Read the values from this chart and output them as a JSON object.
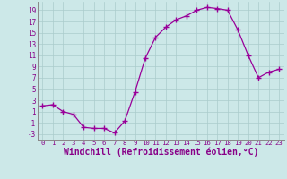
{
  "x": [
    0,
    1,
    2,
    3,
    4,
    5,
    6,
    7,
    8,
    9,
    10,
    11,
    12,
    13,
    14,
    15,
    16,
    17,
    18,
    19,
    20,
    21,
    22,
    23
  ],
  "y": [
    2,
    2.2,
    1,
    0.5,
    -1.8,
    -2,
    -2,
    -2.8,
    -0.7,
    4.5,
    10.5,
    14.2,
    16,
    17.3,
    18,
    19,
    19.5,
    19.3,
    19,
    15.5,
    11,
    7,
    8,
    8.5
  ],
  "line_color": "#990099",
  "marker": "+",
  "marker_size": 4,
  "bg_color": "#cce8e8",
  "grid_color": "#aacccc",
  "xlabel": "Windchill (Refroidissement éolien,°C)",
  "xlabel_fontsize": 7,
  "ylabel_ticks": [
    -3,
    -1,
    1,
    3,
    5,
    7,
    9,
    11,
    13,
    15,
    17,
    19
  ],
  "xlim": [
    -0.5,
    23.5
  ],
  "ylim": [
    -4,
    20.5
  ],
  "xtick_labels": [
    "0",
    "1",
    "2",
    "3",
    "4",
    "5",
    "6",
    "7",
    "8",
    "9",
    "10",
    "11",
    "12",
    "13",
    "14",
    "15",
    "16",
    "17",
    "18",
    "19",
    "20",
    "21",
    "22",
    "23"
  ],
  "tick_color": "#880088",
  "label_color": "#880088"
}
